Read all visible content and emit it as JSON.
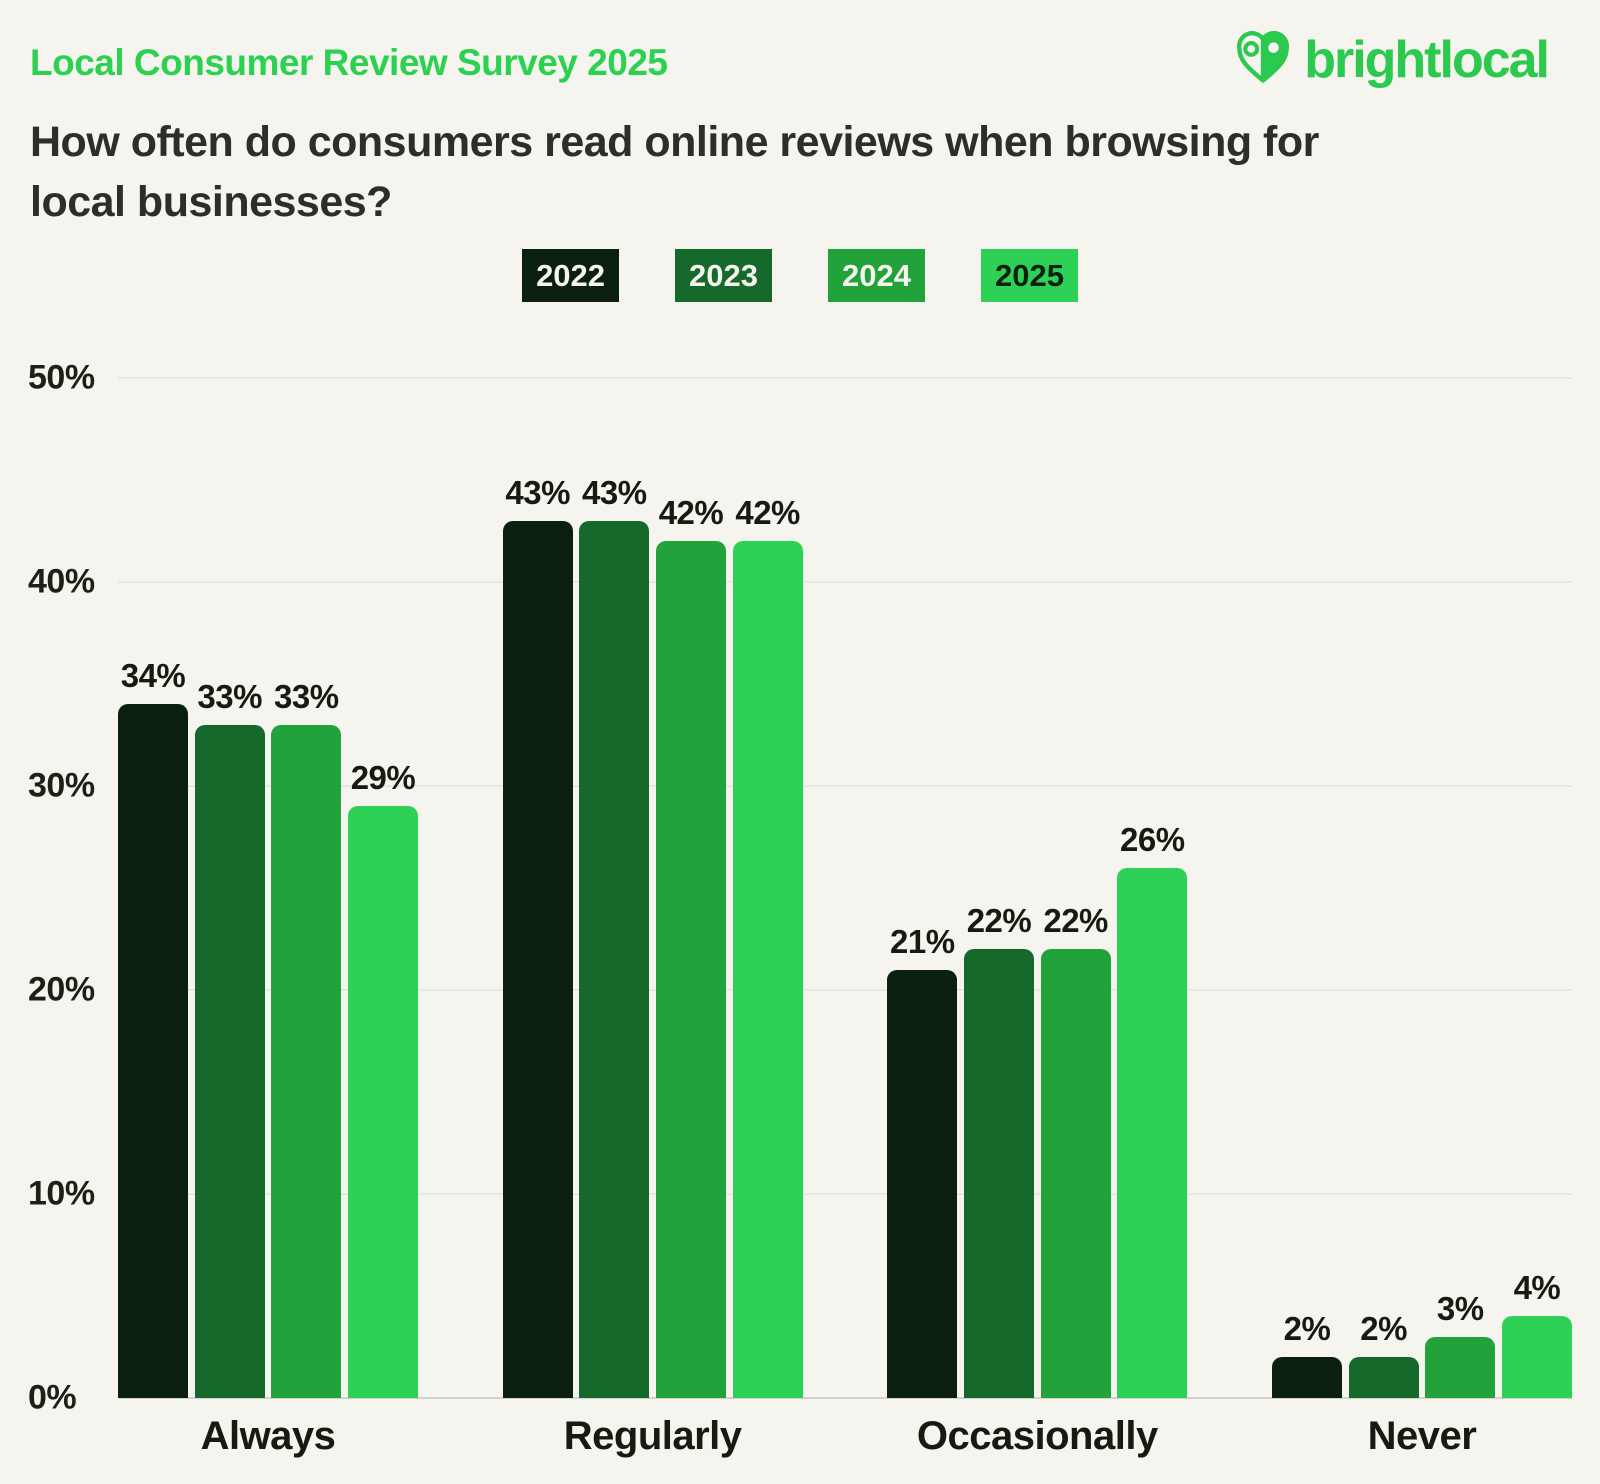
{
  "header": {
    "survey_title": "Local Consumer Review Survey 2025",
    "brand": "brightlocal"
  },
  "question": "How often do consumers read online reviews when browsing for local businesses?",
  "colors": {
    "background": "#f5f4ee",
    "accent_green": "#2bd14f",
    "logo_green": "#2bc94e",
    "text_dark": "#2e2d2a",
    "label_dark": "#161b12",
    "gridline": "#e8e7e0",
    "baseline": "#d3d2cb"
  },
  "chart_data": {
    "type": "bar",
    "title": "How often do consumers read online reviews when browsing for local businesses?",
    "categories": [
      "Always",
      "Regularly",
      "Occasionally",
      "Never"
    ],
    "series": [
      {
        "name": "2022",
        "color": "#0b1f0e",
        "legend_text_color": "#f5f4ee",
        "values": [
          34,
          43,
          21,
          2
        ]
      },
      {
        "name": "2023",
        "color": "#156a2b",
        "legend_text_color": "#f5f4ee",
        "values": [
          33,
          43,
          22,
          2
        ]
      },
      {
        "name": "2024",
        "color": "#21a23a",
        "legend_text_color": "#f5f4ee",
        "values": [
          33,
          42,
          22,
          3
        ]
      },
      {
        "name": "2025",
        "color": "#2ed155",
        "legend_text_color": "#0b1f0e",
        "values": [
          29,
          42,
          26,
          4
        ]
      }
    ],
    "value_suffix": "%",
    "xlabel": "",
    "ylabel": "",
    "ylim": [
      0,
      50
    ],
    "yticks": [
      0,
      10,
      20,
      30,
      40,
      50
    ],
    "ytick_suffix": "%",
    "grid": true,
    "legend_position": "top"
  }
}
